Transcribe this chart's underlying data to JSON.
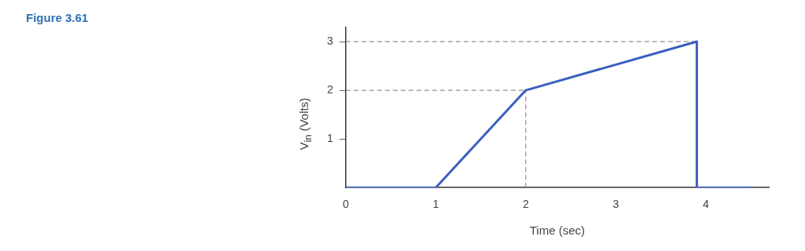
{
  "chart_data": {
    "type": "line",
    "title": "Figure 3.61",
    "xlabel": "Time (sec)",
    "ylabel": "V$_{in}$ (Volts)",
    "x": [
      0,
      1,
      2,
      3.9,
      3.9,
      4.5
    ],
    "series": [
      {
        "color": "#3a5fc0",
        "values": [
          0,
          0,
          2,
          3,
          0,
          0
        ]
      }
    ],
    "xlim": [
      0,
      4.7
    ],
    "xticks": [
      0,
      1,
      2,
      3,
      4
    ],
    "ylim": [
      0,
      3.3
    ],
    "yticks": [
      1,
      2,
      3
    ],
    "grid": false,
    "legend": false,
    "marker": "none",
    "line_style": "solid",
    "ref_lines": [
      {
        "axis": "y",
        "value": 2,
        "color": "#777777",
        "line_style": "dashed"
      },
      {
        "axis": "y",
        "value": 3,
        "color": "#777777",
        "line_style": "dashed"
      },
      {
        "axis": "x",
        "value": 2,
        "color": "#777777",
        "line_style": "dashed"
      }
    ]
  }
}
